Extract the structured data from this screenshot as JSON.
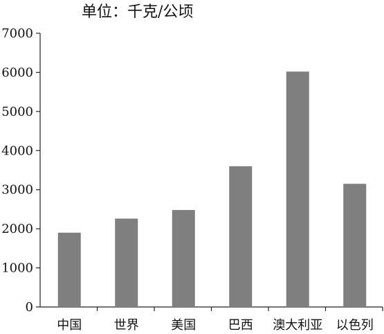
{
  "chart_data": {
    "type": "bar",
    "unit": "单位：千克/公顷",
    "categories": [
      "中国",
      "世界",
      "美国",
      "巴西",
      "澳大利亚",
      "以色列"
    ],
    "values": [
      1900,
      2260,
      2480,
      3600,
      6020,
      3150
    ],
    "ylim": [
      0,
      7000
    ],
    "yticks": [
      0,
      1000,
      2000,
      3000,
      4000,
      5000,
      6000,
      7000
    ],
    "grid": false,
    "bar_color": "#7f7f7f"
  }
}
